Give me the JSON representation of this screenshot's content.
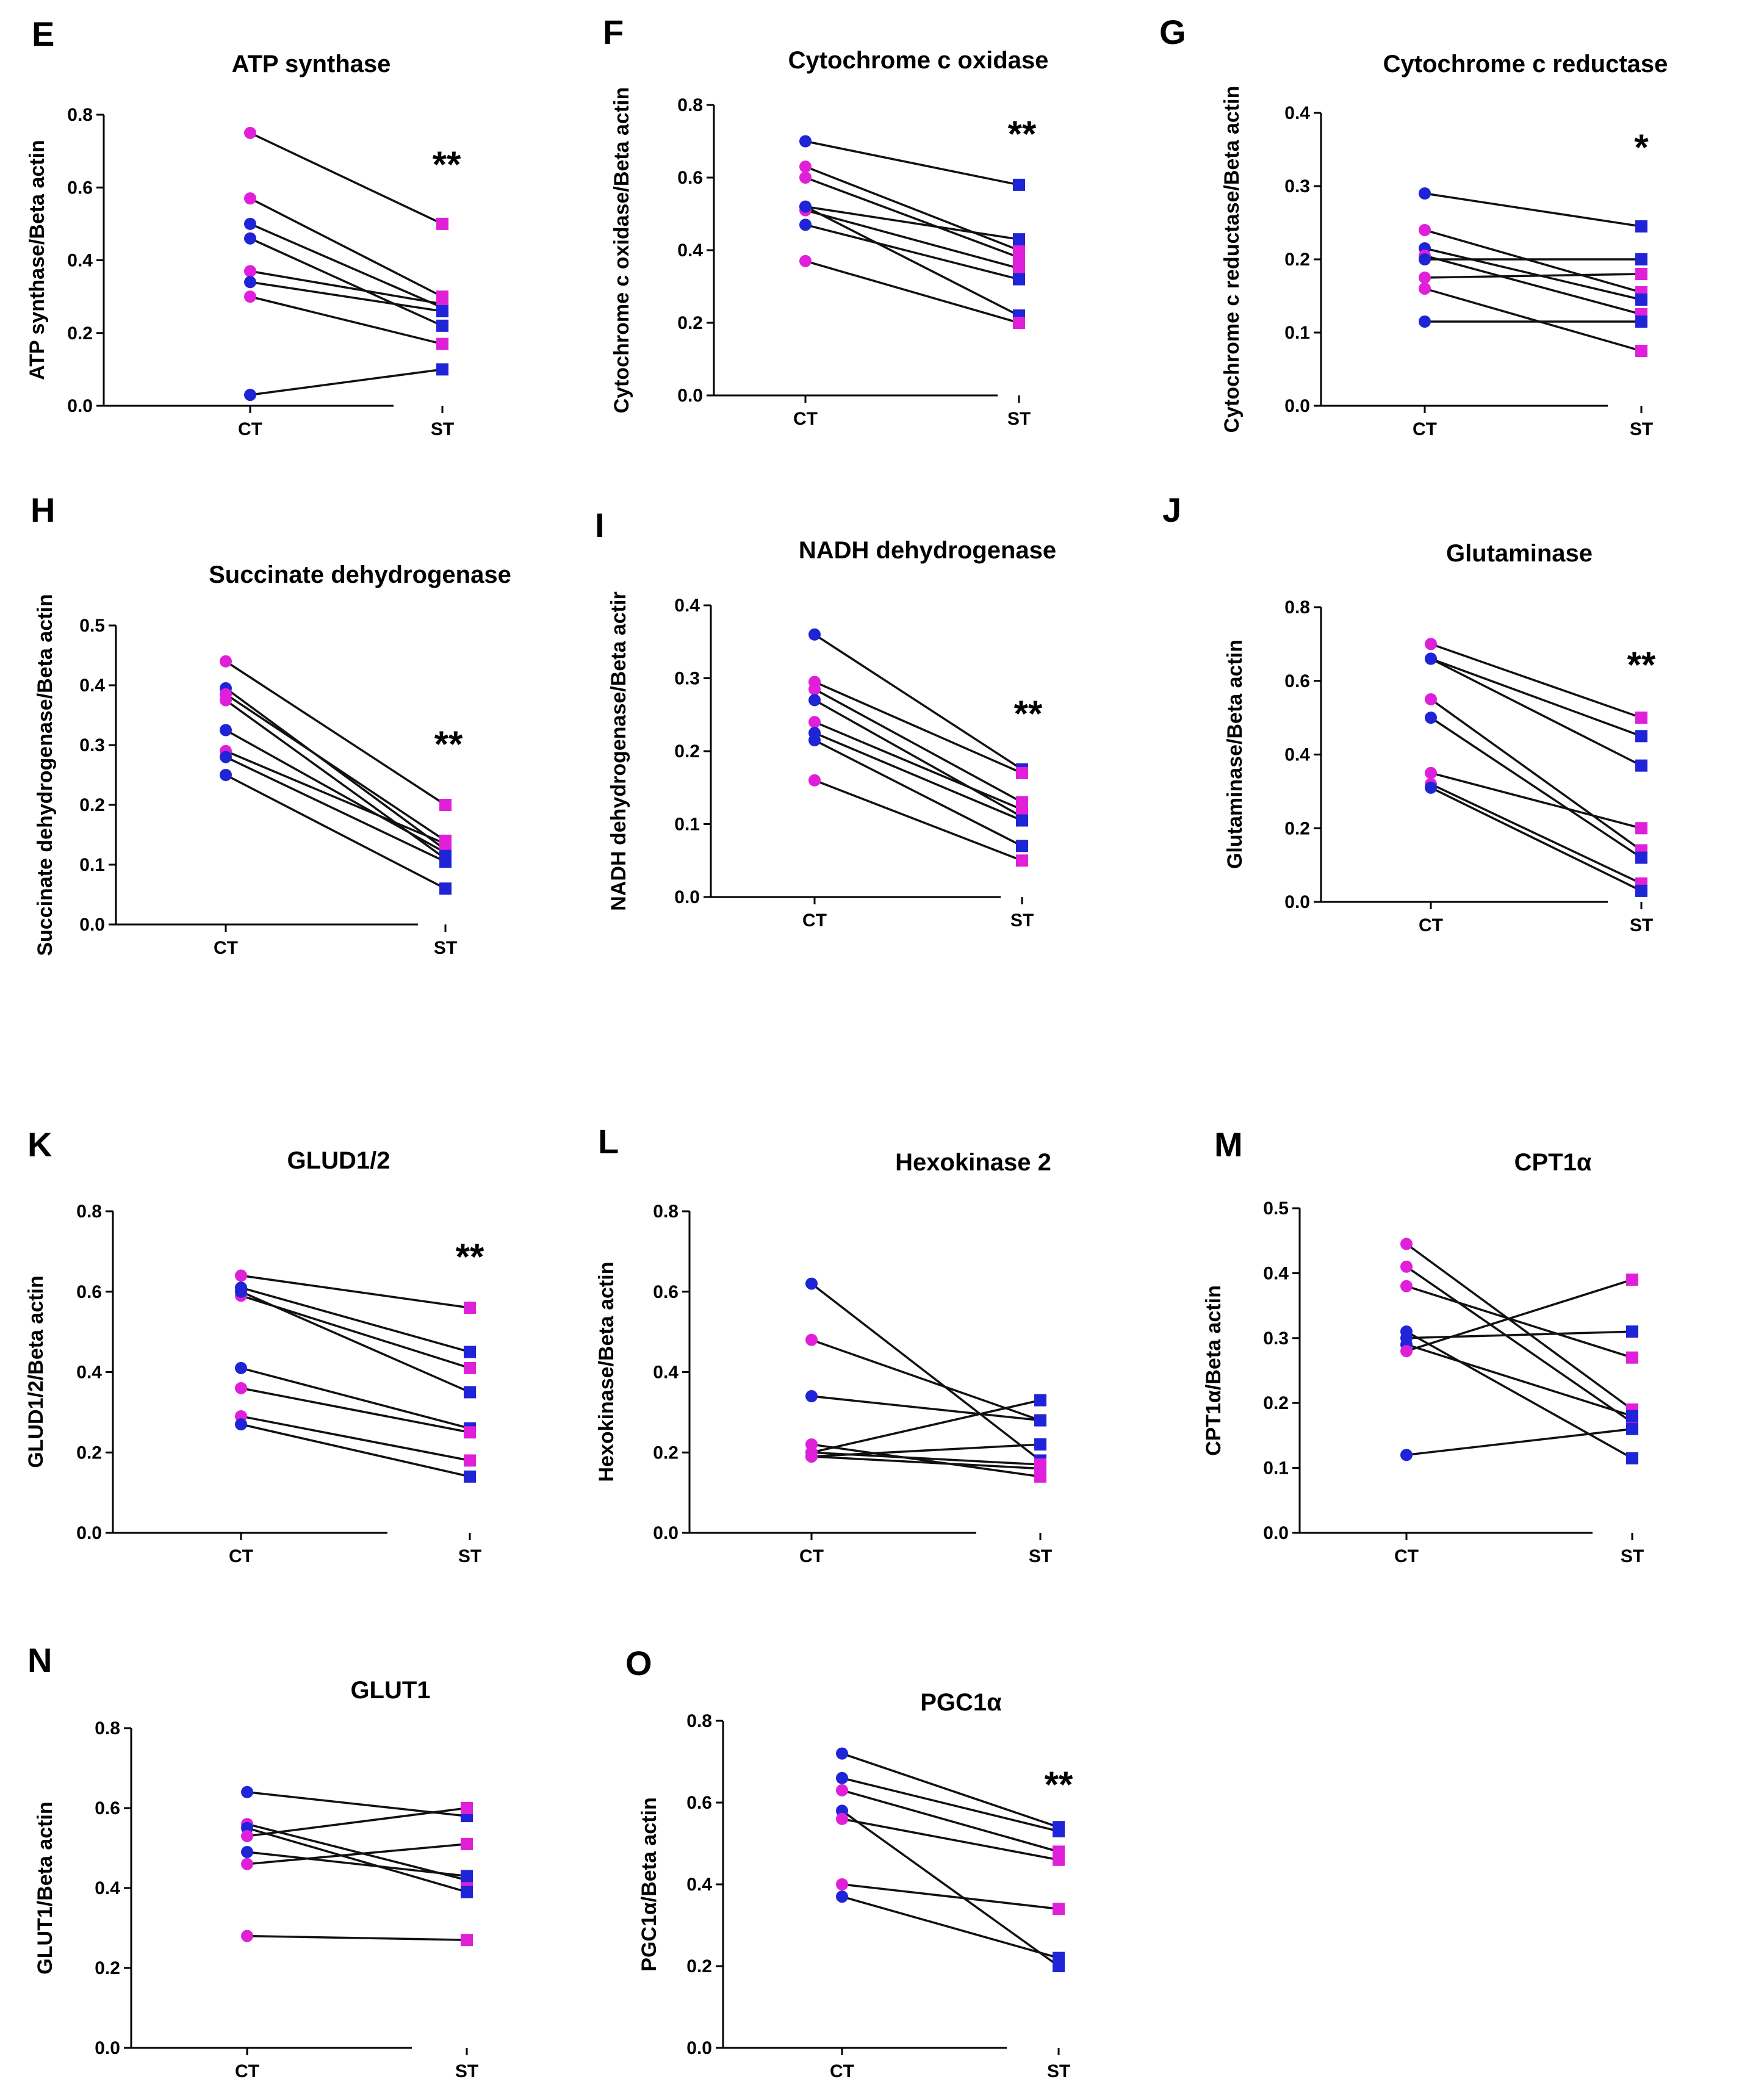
{
  "figure": {
    "colors": {
      "pink": "#e020d8",
      "blue": "#1f24d6",
      "line": "#111111"
    }
  },
  "chart_data": [
    {
      "letter": "E",
      "type": "line",
      "title": "ATP synthase",
      "xlabel": "",
      "ylabel": "ATP synthase/Beta actin",
      "categories": [
        "CT",
        "ST"
      ],
      "ylim": [
        0,
        0.8
      ],
      "yticks": [
        "0.0",
        "0.2",
        "0.4",
        "0.6",
        "0.8"
      ],
      "significance": "**",
      "series": [
        {
          "name": "pair 1",
          "color": "pink",
          "values": [
            0.75,
            0.5
          ]
        },
        {
          "name": "pair 2",
          "color": "pink",
          "values": [
            0.57,
            0.3
          ]
        },
        {
          "name": "pair 3",
          "color": "blue",
          "values": [
            0.5,
            0.27
          ]
        },
        {
          "name": "pair 4",
          "color": "blue",
          "values": [
            0.46,
            0.22
          ]
        },
        {
          "name": "pair 5",
          "color": "pink",
          "values": [
            0.37,
            0.28
          ]
        },
        {
          "name": "pair 6",
          "color": "blue",
          "values": [
            0.34,
            0.26
          ]
        },
        {
          "name": "pair 7",
          "color": "pink",
          "values": [
            0.3,
            0.17
          ]
        },
        {
          "name": "pair 8",
          "color": "blue",
          "values": [
            0.03,
            0.1
          ]
        }
      ]
    },
    {
      "letter": "F",
      "type": "line",
      "title": "Cytochrome c oxidase",
      "xlabel": "",
      "ylabel": "Cytochrome c oxidase/Beta actin",
      "categories": [
        "CT",
        "ST"
      ],
      "ylim": [
        0,
        0.8
      ],
      "yticks": [
        "0.0",
        "0.2",
        "0.4",
        "0.6",
        "0.8"
      ],
      "significance": "**",
      "series": [
        {
          "name": "pair 1",
          "color": "blue",
          "values": [
            0.7,
            0.58
          ]
        },
        {
          "name": "pair 2",
          "color": "pink",
          "values": [
            0.63,
            0.4
          ]
        },
        {
          "name": "pair 3",
          "color": "pink",
          "values": [
            0.6,
            0.38
          ]
        },
        {
          "name": "pair 4",
          "color": "blue",
          "values": [
            0.52,
            0.43
          ]
        },
        {
          "name": "pair 5",
          "color": "pink",
          "values": [
            0.51,
            0.35
          ]
        },
        {
          "name": "pair 6",
          "color": "blue",
          "values": [
            0.47,
            0.32
          ]
        },
        {
          "name": "pair 7",
          "color": "blue",
          "values": [
            0.52,
            0.22
          ]
        },
        {
          "name": "pair 8",
          "color": "pink",
          "values": [
            0.37,
            0.2
          ]
        }
      ]
    },
    {
      "letter": "G",
      "type": "line",
      "title": "Cytochrome c reductase",
      "xlabel": "",
      "ylabel": "Cytochrome c reductase/Beta actin",
      "categories": [
        "CT",
        "ST"
      ],
      "ylim": [
        0,
        0.4
      ],
      "yticks": [
        "0.0",
        "0.1",
        "0.2",
        "0.3",
        "0.4"
      ],
      "significance": "*",
      "series": [
        {
          "name": "pair 1",
          "color": "blue",
          "values": [
            0.29,
            0.245
          ]
        },
        {
          "name": "pair 2",
          "color": "pink",
          "values": [
            0.24,
            0.155
          ]
        },
        {
          "name": "pair 3",
          "color": "blue",
          "values": [
            0.215,
            0.145
          ]
        },
        {
          "name": "pair 4",
          "color": "pink",
          "values": [
            0.205,
            0.125
          ]
        },
        {
          "name": "pair 5",
          "color": "blue",
          "values": [
            0.2,
            0.2
          ]
        },
        {
          "name": "pair 6",
          "color": "pink",
          "values": [
            0.175,
            0.18
          ]
        },
        {
          "name": "pair 7",
          "color": "pink",
          "values": [
            0.16,
            0.075
          ]
        },
        {
          "name": "pair 8",
          "color": "blue",
          "values": [
            0.115,
            0.115
          ]
        }
      ]
    },
    {
      "letter": "H",
      "type": "line",
      "title": "Succinate dehydrogenase",
      "xlabel": "",
      "ylabel": "Succinate dehydrogenase/Beta actin",
      "categories": [
        "CT",
        "ST"
      ],
      "ylim": [
        0,
        0.5
      ],
      "yticks": [
        "0.0",
        "0.1",
        "0.2",
        "0.3",
        "0.4",
        "0.5"
      ],
      "significance": "**",
      "series": [
        {
          "name": "pair 1",
          "color": "pink",
          "values": [
            0.44,
            0.2
          ]
        },
        {
          "name": "pair 2",
          "color": "blue",
          "values": [
            0.395,
            0.125
          ]
        },
        {
          "name": "pair 3",
          "color": "pink",
          "values": [
            0.385,
            0.14
          ]
        },
        {
          "name": "pair 4",
          "color": "pink",
          "values": [
            0.375,
            0.11
          ]
        },
        {
          "name": "pair 5",
          "color": "blue",
          "values": [
            0.325,
            0.12
          ]
        },
        {
          "name": "pair 6",
          "color": "pink",
          "values": [
            0.29,
            0.135
          ]
        },
        {
          "name": "pair 7",
          "color": "blue",
          "values": [
            0.28,
            0.105
          ]
        },
        {
          "name": "pair 8",
          "color": "blue",
          "values": [
            0.25,
            0.06
          ]
        }
      ]
    },
    {
      "letter": "I",
      "type": "line",
      "title": "NADH dehydrogenase",
      "xlabel": "",
      "ylabel": "NADH dehydrogenase/Beta actir",
      "categories": [
        "CT",
        "ST"
      ],
      "ylim": [
        0,
        0.4
      ],
      "yticks": [
        "0.0",
        "0.1",
        "0.2",
        "0.3",
        "0.4"
      ],
      "significance": "**",
      "series": [
        {
          "name": "pair 1",
          "color": "blue",
          "values": [
            0.36,
            0.175
          ]
        },
        {
          "name": "pair 2",
          "color": "pink",
          "values": [
            0.295,
            0.17
          ]
        },
        {
          "name": "pair 3",
          "color": "pink",
          "values": [
            0.285,
            0.13
          ]
        },
        {
          "name": "pair 4",
          "color": "blue",
          "values": [
            0.27,
            0.11
          ]
        },
        {
          "name": "pair 5",
          "color": "pink",
          "values": [
            0.24,
            0.12
          ]
        },
        {
          "name": "pair 6",
          "color": "blue",
          "values": [
            0.225,
            0.105
          ]
        },
        {
          "name": "pair 7",
          "color": "blue",
          "values": [
            0.215,
            0.07
          ]
        },
        {
          "name": "pair 8",
          "color": "pink",
          "values": [
            0.16,
            0.05
          ]
        }
      ]
    },
    {
      "letter": "J",
      "type": "line",
      "title": "Glutaminase",
      "xlabel": "",
      "ylabel": "Glutaminase/Beta actin",
      "categories": [
        "CT",
        "ST"
      ],
      "ylim": [
        0,
        0.8
      ],
      "yticks": [
        "0.0",
        "0.2",
        "0.4",
        "0.6",
        "0.8"
      ],
      "significance": "**",
      "series": [
        {
          "name": "pair 1",
          "color": "pink",
          "values": [
            0.7,
            0.5
          ]
        },
        {
          "name": "pair 2",
          "color": "blue",
          "values": [
            0.66,
            0.45
          ]
        },
        {
          "name": "pair 3",
          "color": "blue",
          "values": [
            0.66,
            0.37
          ]
        },
        {
          "name": "pair 4",
          "color": "pink",
          "values": [
            0.55,
            0.14
          ]
        },
        {
          "name": "pair 5",
          "color": "blue",
          "values": [
            0.5,
            0.12
          ]
        },
        {
          "name": "pair 6",
          "color": "pink",
          "values": [
            0.35,
            0.2
          ]
        },
        {
          "name": "pair 7",
          "color": "pink",
          "values": [
            0.32,
            0.05
          ]
        },
        {
          "name": "pair 8",
          "color": "blue",
          "values": [
            0.31,
            0.03
          ]
        }
      ]
    },
    {
      "letter": "K",
      "type": "line",
      "title": "GLUD1/2",
      "xlabel": "",
      "ylabel": "GLUD1/2/Beta actin",
      "categories": [
        "CT",
        "ST"
      ],
      "ylim": [
        0,
        0.8
      ],
      "yticks": [
        "0.0",
        "0.2",
        "0.4",
        "0.6",
        "0.8"
      ],
      "significance": "**",
      "series": [
        {
          "name": "pair 1",
          "color": "pink",
          "values": [
            0.64,
            0.56
          ]
        },
        {
          "name": "pair 2",
          "color": "blue",
          "values": [
            0.61,
            0.45
          ]
        },
        {
          "name": "pair 3",
          "color": "pink",
          "values": [
            0.59,
            0.41
          ]
        },
        {
          "name": "pair 4",
          "color": "blue",
          "values": [
            0.6,
            0.35
          ]
        },
        {
          "name": "pair 5",
          "color": "blue",
          "values": [
            0.41,
            0.26
          ]
        },
        {
          "name": "pair 6",
          "color": "pink",
          "values": [
            0.36,
            0.25
          ]
        },
        {
          "name": "pair 7",
          "color": "pink",
          "values": [
            0.29,
            0.18
          ]
        },
        {
          "name": "pair 8",
          "color": "blue",
          "values": [
            0.27,
            0.14
          ]
        }
      ]
    },
    {
      "letter": "L",
      "type": "line",
      "title": "Hexokinase 2",
      "xlabel": "",
      "ylabel": "Hexokinase/Beta actin",
      "categories": [
        "CT",
        "ST"
      ],
      "ylim": [
        0,
        0.8
      ],
      "yticks": [
        "0.0",
        "0.2",
        "0.4",
        "0.6",
        "0.8"
      ],
      "significance": "",
      "series": [
        {
          "name": "pair 1",
          "color": "blue",
          "values": [
            0.62,
            0.18
          ]
        },
        {
          "name": "pair 2",
          "color": "pink",
          "values": [
            0.48,
            0.28
          ]
        },
        {
          "name": "pair 3",
          "color": "blue",
          "values": [
            0.34,
            0.28
          ]
        },
        {
          "name": "pair 4",
          "color": "pink",
          "values": [
            0.22,
            0.14
          ]
        },
        {
          "name": "pair 5",
          "color": "blue",
          "values": [
            0.2,
            0.33
          ]
        },
        {
          "name": "pair 6",
          "color": "pink",
          "values": [
            0.2,
            0.17
          ]
        },
        {
          "name": "pair 7",
          "color": "blue",
          "values": [
            0.19,
            0.22
          ]
        },
        {
          "name": "pair 8",
          "color": "pink",
          "values": [
            0.19,
            0.16
          ]
        }
      ]
    },
    {
      "letter": "M",
      "type": "line",
      "title": "CPT1α",
      "xlabel": "",
      "ylabel": "CPT1α/Beta actin",
      "categories": [
        "CT",
        "ST"
      ],
      "ylim": [
        0,
        0.5
      ],
      "yticks": [
        "0.0",
        "0.1",
        "0.2",
        "0.3",
        "0.4",
        "0.5"
      ],
      "significance": "",
      "series": [
        {
          "name": "pair 1",
          "color": "pink",
          "values": [
            0.445,
            0.19
          ]
        },
        {
          "name": "pair 2",
          "color": "pink",
          "values": [
            0.41,
            0.17
          ]
        },
        {
          "name": "pair 3",
          "color": "pink",
          "values": [
            0.38,
            0.27
          ]
        },
        {
          "name": "pair 4",
          "color": "blue",
          "values": [
            0.31,
            0.115
          ]
        },
        {
          "name": "pair 5",
          "color": "blue",
          "values": [
            0.3,
            0.31
          ]
        },
        {
          "name": "pair 6",
          "color": "blue",
          "values": [
            0.29,
            0.18
          ]
        },
        {
          "name": "pair 7",
          "color": "pink",
          "values": [
            0.28,
            0.39
          ]
        },
        {
          "name": "pair 8",
          "color": "blue",
          "values": [
            0.12,
            0.16
          ]
        }
      ]
    },
    {
      "letter": "N",
      "type": "line",
      "title": "GLUT1",
      "xlabel": "",
      "ylabel": "GLUT1/Beta actin",
      "categories": [
        "CT",
        "ST"
      ],
      "ylim": [
        0,
        0.8
      ],
      "yticks": [
        "0.0",
        "0.2",
        "0.4",
        "0.6",
        "0.8"
      ],
      "significance": "",
      "series": [
        {
          "name": "pair 1",
          "color": "blue",
          "values": [
            0.64,
            0.58
          ]
        },
        {
          "name": "pair 2",
          "color": "pink",
          "values": [
            0.56,
            0.42
          ]
        },
        {
          "name": "pair 3",
          "color": "blue",
          "values": [
            0.55,
            0.39
          ]
        },
        {
          "name": "pair 4",
          "color": "pink",
          "values": [
            0.53,
            0.6
          ]
        },
        {
          "name": "pair 5",
          "color": "blue",
          "values": [
            0.49,
            0.43
          ]
        },
        {
          "name": "pair 6",
          "color": "pink",
          "values": [
            0.46,
            0.51
          ]
        },
        {
          "name": "pair 7",
          "color": "pink",
          "values": [
            0.28,
            0.27
          ]
        }
      ]
    },
    {
      "letter": "O",
      "type": "line",
      "title": "PGC1α",
      "xlabel": "",
      "ylabel": "PGC1α/Beta actin",
      "categories": [
        "CT",
        "ST"
      ],
      "ylim": [
        0,
        0.8
      ],
      "yticks": [
        "0.0",
        "0.2",
        "0.4",
        "0.6",
        "0.8"
      ],
      "significance": "**",
      "series": [
        {
          "name": "pair 1",
          "color": "blue",
          "values": [
            0.72,
            0.54
          ]
        },
        {
          "name": "pair 2",
          "color": "blue",
          "values": [
            0.66,
            0.53
          ]
        },
        {
          "name": "pair 3",
          "color": "pink",
          "values": [
            0.63,
            0.48
          ]
        },
        {
          "name": "pair 4",
          "color": "blue",
          "values": [
            0.58,
            0.2
          ]
        },
        {
          "name": "pair 5",
          "color": "pink",
          "values": [
            0.56,
            0.46
          ]
        },
        {
          "name": "pair 6",
          "color": "pink",
          "values": [
            0.4,
            0.34
          ]
        },
        {
          "name": "pair 7",
          "color": "blue",
          "values": [
            0.37,
            0.22
          ]
        }
      ]
    }
  ]
}
